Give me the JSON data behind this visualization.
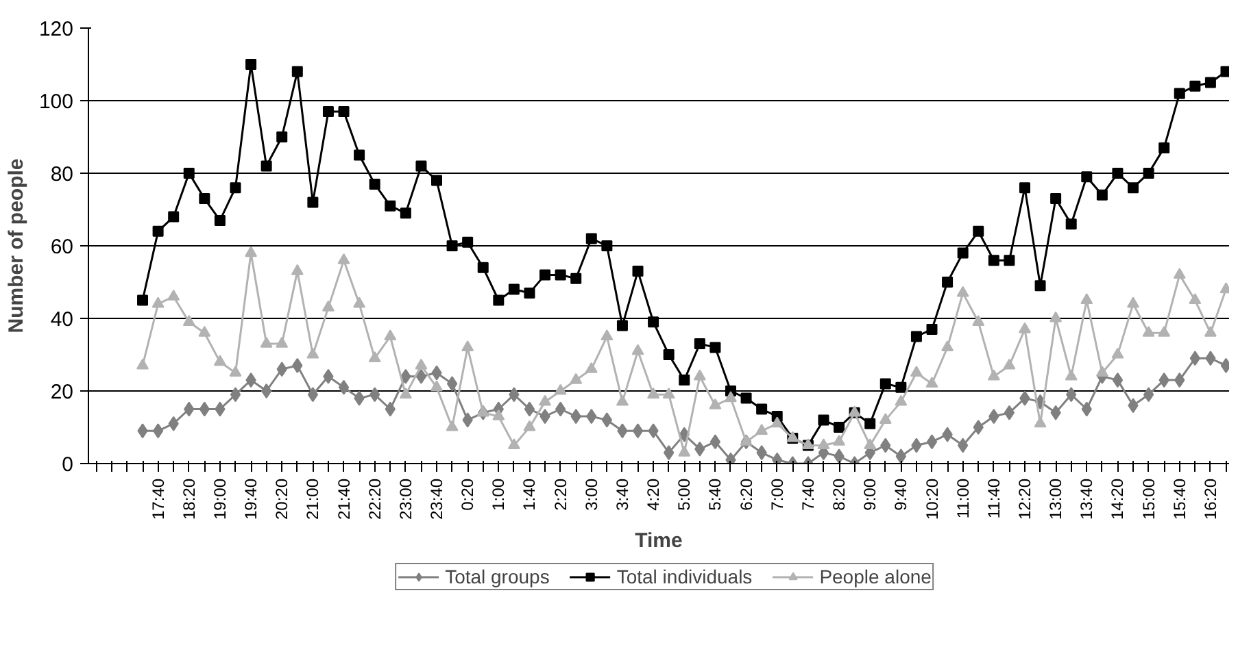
{
  "chart_data": {
    "type": "line",
    "xlabel": "Time",
    "ylabel": "Number of people",
    "categories": [
      null,
      null,
      null,
      null,
      "17:40",
      null,
      "18:20",
      null,
      "19:00",
      null,
      "19:40",
      null,
      "20:20",
      null,
      "21:00",
      null,
      "21:40",
      null,
      "22:20",
      null,
      "23:00",
      null,
      "23:40",
      null,
      "0:20",
      null,
      "1:00",
      null,
      "1:40",
      null,
      "2:20",
      null,
      "3:00",
      null,
      "3:40",
      null,
      "4:20",
      null,
      "5:00",
      null,
      "5:40",
      null,
      "6:20",
      null,
      "7:00",
      null,
      "7:40",
      null,
      "8:20",
      null,
      "9:00",
      null,
      "9:40",
      null,
      "10:20",
      null,
      "11:00",
      null,
      "11:40",
      null,
      "12:20",
      null,
      "13:00",
      null,
      "13:40",
      null,
      "14:20",
      null,
      "15:00",
      null,
      "15:40",
      null,
      "16:20",
      null
    ],
    "series": [
      {
        "name": "Total groups",
        "color": "#808080",
        "marker": "diamond",
        "values": [
          null,
          null,
          null,
          9,
          9,
          11,
          15,
          15,
          15,
          19,
          23,
          20,
          26,
          27,
          19,
          24,
          21,
          18,
          19,
          15,
          24,
          24,
          25,
          22,
          12,
          14,
          15,
          19,
          15,
          13,
          15,
          13,
          13,
          12,
          9,
          9,
          9,
          3,
          8,
          4,
          6,
          1,
          6,
          3,
          1,
          0,
          0,
          3,
          2,
          0,
          3,
          5,
          2,
          5,
          6,
          8,
          5,
          10,
          13,
          14,
          18,
          17,
          14,
          19,
          15,
          24,
          23,
          16,
          19,
          23,
          23,
          29,
          29,
          27
        ]
      },
      {
        "name": "Total individuals",
        "color": "#000000",
        "marker": "square",
        "values": [
          null,
          null,
          null,
          45,
          64,
          68,
          80,
          73,
          67,
          76,
          110,
          82,
          90,
          108,
          72,
          97,
          97,
          85,
          77,
          71,
          69,
          82,
          78,
          60,
          61,
          54,
          45,
          48,
          47,
          52,
          52,
          51,
          62,
          60,
          38,
          53,
          39,
          30,
          23,
          33,
          32,
          20,
          18,
          15,
          13,
          7,
          5,
          12,
          10,
          14,
          11,
          22,
          21,
          35,
          37,
          50,
          58,
          64,
          56,
          56,
          76,
          49,
          73,
          66,
          79,
          74,
          80,
          76,
          80,
          87,
          102,
          104,
          105,
          108
        ]
      },
      {
        "name": "People alone",
        "color": "#b2b2b2",
        "marker": "triangle",
        "values": [
          null,
          null,
          null,
          27,
          44,
          46,
          39,
          36,
          28,
          25,
          58,
          33,
          33,
          53,
          30,
          43,
          56,
          44,
          29,
          35,
          19,
          27,
          21,
          10,
          32,
          14,
          13,
          5,
          10,
          17,
          20,
          23,
          26,
          35,
          17,
          31,
          19,
          19,
          3,
          24,
          16,
          18,
          6,
          9,
          11,
          7,
          5,
          5,
          6,
          14,
          5,
          12,
          17,
          25,
          22,
          32,
          47,
          39,
          24,
          27,
          37,
          11,
          40,
          24,
          45,
          25,
          30,
          44,
          36,
          36,
          52,
          45,
          36,
          48
        ]
      }
    ],
    "ylim": [
      0,
      120
    ],
    "yticks": [
      0,
      20,
      40,
      60,
      80,
      100,
      120
    ],
    "grid": "y",
    "legend": "bottom"
  }
}
